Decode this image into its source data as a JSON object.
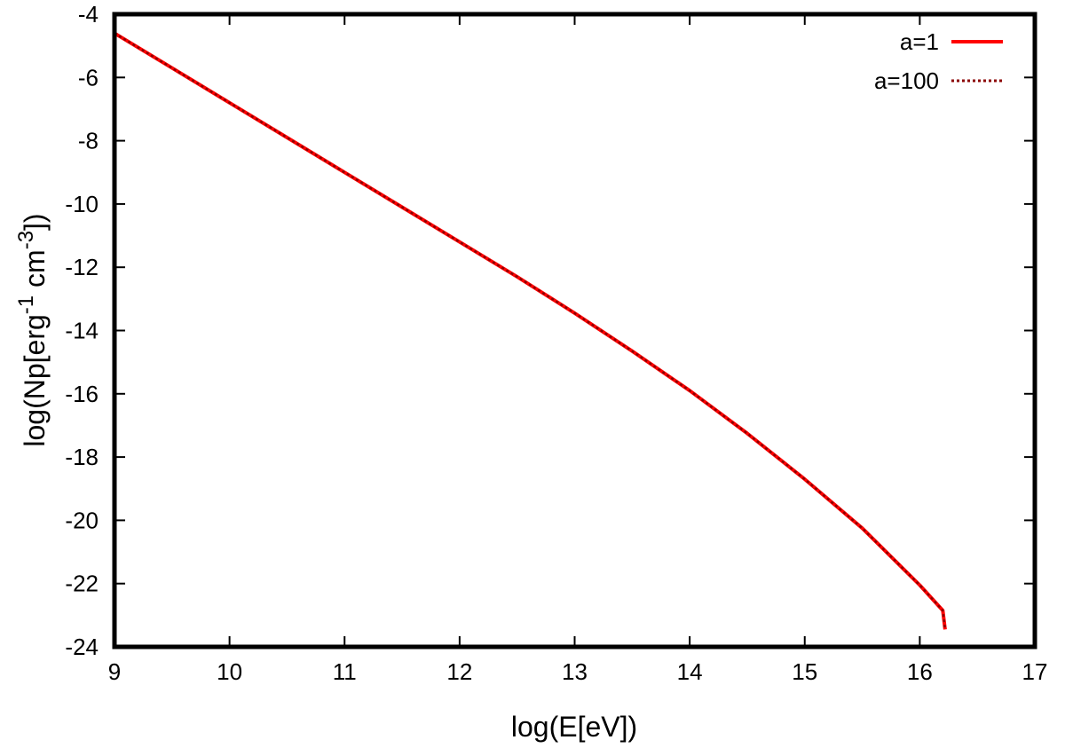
{
  "chart_data": {
    "type": "line",
    "xlabel": "log(E[eV])",
    "ylabel": {
      "parts": [
        {
          "text": "log(Np[erg",
          "sup": false
        },
        {
          "text": "-1",
          "sup": true
        },
        {
          "text": " cm",
          "sup": false
        },
        {
          "text": "-3",
          "sup": true
        },
        {
          "text": "])",
          "sup": false
        }
      ]
    },
    "xlim": [
      9,
      17
    ],
    "ylim": [
      -24,
      -4
    ],
    "xticks": [
      9,
      10,
      11,
      12,
      13,
      14,
      15,
      16,
      17
    ],
    "yticks": [
      -24,
      -22,
      -20,
      -18,
      -16,
      -14,
      -12,
      -10,
      -8,
      -6,
      -4
    ],
    "grid": false,
    "legend_position": "top-right",
    "series": [
      {
        "name": "a=1",
        "color": "#ff0000",
        "style": "solid",
        "x": [
          9.0,
          9.5,
          10.0,
          10.5,
          11.0,
          11.5,
          12.0,
          12.5,
          13.0,
          13.5,
          14.0,
          14.5,
          15.0,
          15.5,
          16.0,
          16.2,
          16.22
        ],
        "y": [
          -4.6,
          -5.7,
          -6.8,
          -7.9,
          -9.0,
          -10.1,
          -11.2,
          -12.3,
          -13.45,
          -14.65,
          -15.9,
          -17.25,
          -18.7,
          -20.25,
          -22.05,
          -22.85,
          -23.45
        ]
      },
      {
        "name": "a=100",
        "color": "#8b0000",
        "style": "dotted",
        "x": [
          9.0,
          9.5,
          10.0,
          10.5,
          11.0,
          11.5,
          12.0,
          12.5,
          13.0,
          13.5,
          14.0,
          14.5,
          15.0,
          15.5,
          16.0,
          16.2,
          16.22
        ],
        "y": [
          -4.6,
          -5.7,
          -6.8,
          -7.9,
          -9.0,
          -10.1,
          -11.2,
          -12.3,
          -13.45,
          -14.65,
          -15.9,
          -17.25,
          -18.7,
          -20.25,
          -22.05,
          -22.85,
          -23.45
        ]
      }
    ]
  }
}
